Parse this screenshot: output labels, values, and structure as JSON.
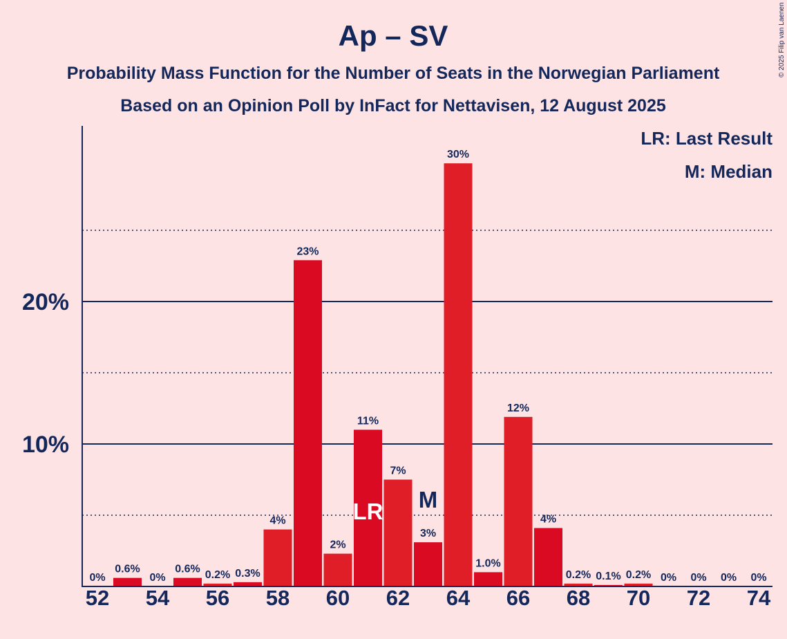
{
  "chart_data": {
    "type": "bar",
    "title": "Ap – SV",
    "subtitle_line1": "Probability Mass Function for the Number of Seats in the Norwegian Parliament",
    "subtitle_line2": "Based on an Opinion Poll by InFact for Nettavisen, 12 August 2025",
    "copyright": "© 2025 Filip van Laenen",
    "legend": {
      "lr": "LR: Last Result",
      "m": "M: Median"
    },
    "x": [
      52,
      53,
      54,
      55,
      56,
      57,
      58,
      59,
      60,
      61,
      62,
      63,
      64,
      65,
      66,
      67,
      68,
      69,
      70,
      71,
      72,
      73,
      74
    ],
    "values": [
      0,
      0.6,
      0,
      0.6,
      0.2,
      0.3,
      4.0,
      22.9,
      2.3,
      11.0,
      7.5,
      3.1,
      29.7,
      1.0,
      11.9,
      4.1,
      0.2,
      0.1,
      0.2,
      0,
      0,
      0,
      0
    ],
    "data_labels": [
      "0%",
      "0.6%",
      "0%",
      "0.6%",
      "0.2%",
      "0.3%",
      "4%",
      "23%",
      "2%",
      "11%",
      "7%",
      "3%",
      "30%",
      "1.0%",
      "12%",
      "4%",
      "0.2%",
      "0.1%",
      "0.2%",
      "0%",
      "0%",
      "0%",
      "0%"
    ],
    "xtick_values": [
      52,
      54,
      56,
      58,
      60,
      62,
      64,
      66,
      68,
      70,
      72,
      74
    ],
    "xtick_labels": [
      "52",
      "54",
      "56",
      "58",
      "60",
      "62",
      "64",
      "66",
      "68",
      "70",
      "72",
      "74"
    ],
    "yticks": [
      10,
      20
    ],
    "ytick_labels": [
      "10%",
      "20%"
    ],
    "ylim": [
      0,
      32.5
    ],
    "dotted_gridlines": [
      5,
      15,
      25
    ],
    "last_result_seat": 61,
    "last_result_label": "LR",
    "median_seat": 63,
    "median_label": "M",
    "bar_color": "#e01e27",
    "bar_color_alt": "#d90a22",
    "axis_color": "#14275a",
    "background": "#fde3e4"
  }
}
